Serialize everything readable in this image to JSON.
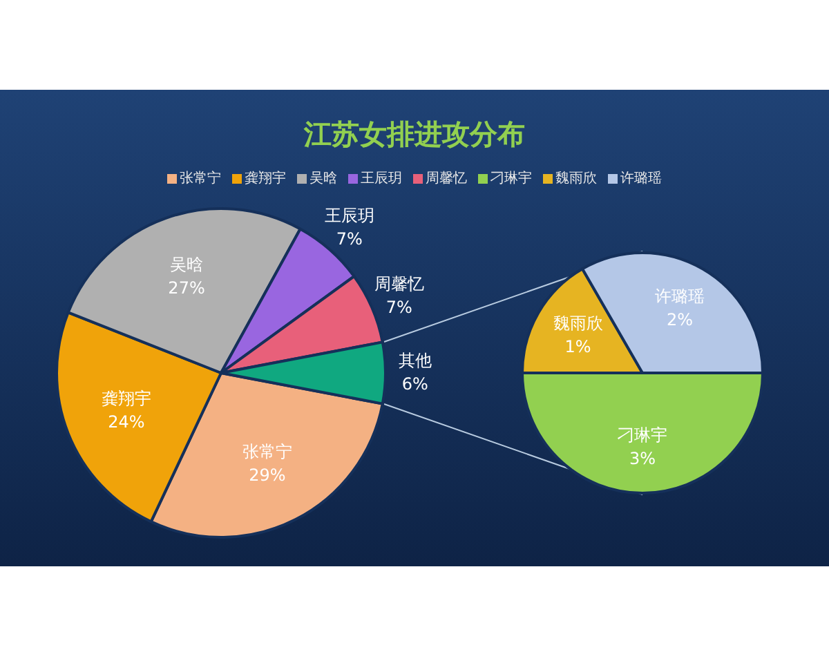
{
  "chart_data": [
    {
      "type": "pie",
      "title": "江苏女排进攻分布",
      "categories": [
        "张常宁",
        "龚翔宇",
        "吴晗",
        "王辰玥",
        "周馨忆",
        "其他"
      ],
      "values": [
        29,
        24,
        27,
        7,
        7,
        6
      ],
      "colors": [
        "#f4b183",
        "#f0a30a",
        "#b0b0b0",
        "#9966e0",
        "#e8607a",
        "#10a880"
      ],
      "value_labels": [
        "29%",
        "24%",
        "27%",
        "7%",
        "7%",
        "6%"
      ],
      "legend": "top"
    },
    {
      "type": "pie",
      "categories": [
        "刁琳宇",
        "魏雨欣",
        "许璐瑶"
      ],
      "values": [
        3,
        1,
        2
      ],
      "colors": [
        "#92d050",
        "#e6b422",
        "#b4c7e7"
      ],
      "value_labels": [
        "3%",
        "1%",
        "2%"
      ],
      "legend": "top"
    }
  ]
}
